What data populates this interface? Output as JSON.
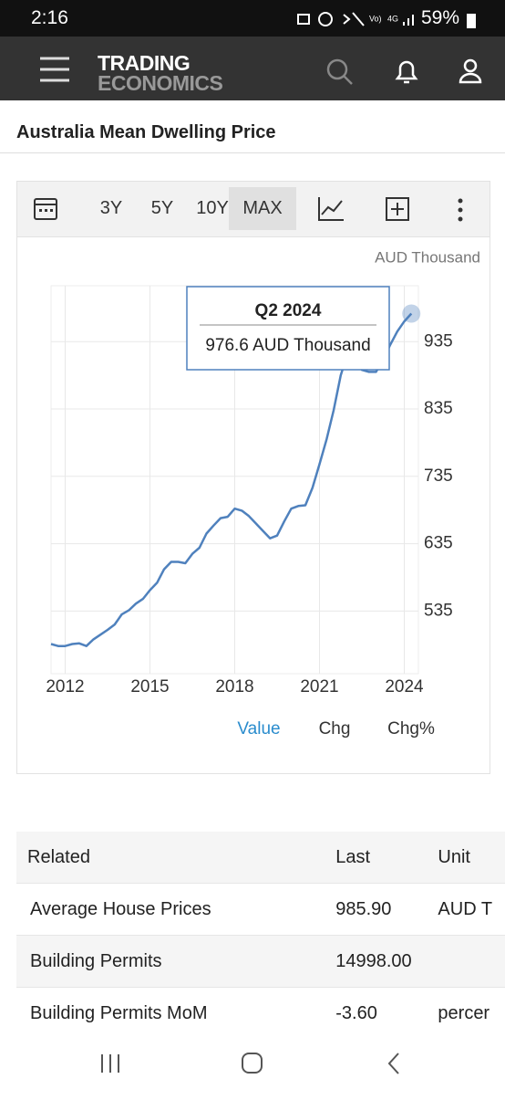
{
  "status_bar": {
    "time": "2:16",
    "battery": "59%"
  },
  "header": {
    "logo_top": "TRADING",
    "logo_bottom": "ECONOMICS"
  },
  "page_title": "Australia Mean Dwelling Price",
  "toolbar": {
    "ranges": [
      "3Y",
      "5Y",
      "10Y",
      "MAX"
    ],
    "active": "MAX"
  },
  "chart_data": {
    "type": "line",
    "unit_label": "AUD Thousand",
    "x": [
      2011.5,
      2011.75,
      2012,
      2012.25,
      2012.5,
      2012.75,
      2013,
      2013.25,
      2013.5,
      2013.75,
      2014,
      2014.25,
      2014.5,
      2014.75,
      2015,
      2015.25,
      2015.5,
      2015.75,
      2016,
      2016.25,
      2016.5,
      2016.75,
      2017,
      2017.25,
      2017.5,
      2017.75,
      2018,
      2018.25,
      2018.5,
      2018.75,
      2019,
      2019.25,
      2019.5,
      2019.75,
      2020,
      2020.25,
      2020.5,
      2020.75,
      2021,
      2021.25,
      2021.5,
      2021.75,
      2022,
      2022.25,
      2022.5,
      2022.75,
      2023,
      2023.25,
      2023.5,
      2023.75,
      2024,
      2024.25
    ],
    "series": [
      {
        "name": "Mean Dwelling Price",
        "color": "#4f81bd",
        "values": [
          486,
          483,
          483,
          486,
          487,
          483,
          493,
          500,
          507,
          515,
          530,
          536,
          546,
          553,
          566,
          577,
          597,
          608,
          608,
          606,
          620,
          629,
          650,
          662,
          673,
          675,
          687,
          684,
          676,
          665,
          654,
          643,
          647,
          668,
          687,
          691,
          692,
          718,
          753,
          790,
          833,
          885,
          918,
          910,
          893,
          890,
          890,
          908,
          930,
          950,
          965,
          976.6
        ]
      }
    ],
    "xlim": [
      2011.5,
      2024.5
    ],
    "xticks": [
      2012,
      2015,
      2018,
      2021,
      2024
    ],
    "ylim": [
      442,
      1018
    ],
    "yticks": [
      535,
      635,
      735,
      835,
      935
    ],
    "grid": true,
    "tooltip": {
      "title": "Q2 2024",
      "text": "976.6 AUD Thousand"
    },
    "tabs": [
      "Value",
      "Chg",
      "Chg%"
    ],
    "active_tab": "Value"
  },
  "table": {
    "header": [
      "Related",
      "Last",
      "Unit"
    ],
    "rows": [
      [
        "Average House Prices",
        "985.90",
        "AUD T"
      ],
      [
        "Building Permits",
        "14998.00",
        ""
      ],
      [
        "Building Permits MoM",
        "-3.60",
        "percer"
      ]
    ]
  }
}
